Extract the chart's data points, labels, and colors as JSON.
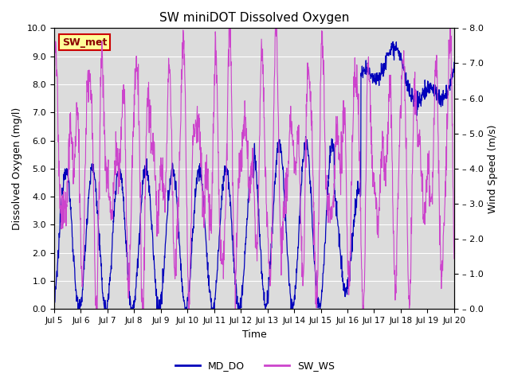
{
  "title": "SW miniDOT Dissolved Oxygen",
  "xlabel": "Time",
  "ylabel_left": "Dissolved Oxygen (mg/l)",
  "ylabel_right": "Wind Speed (m/s)",
  "ylim_left": [
    0.0,
    10.0
  ],
  "ylim_right": [
    0.0,
    8.0
  ],
  "yticks_left": [
    0.0,
    1.0,
    2.0,
    3.0,
    4.0,
    5.0,
    6.0,
    7.0,
    8.0,
    9.0,
    10.0
  ],
  "yticks_right": [
    0.0,
    1.0,
    2.0,
    3.0,
    4.0,
    5.0,
    6.0,
    7.0,
    8.0
  ],
  "ytick_right_labels": [
    "– 0.0",
    "– 1.0",
    "– 2.0",
    "– 3.0",
    "– 4.0",
    "– 5.0",
    "– 6.0",
    "– 7.0",
    "– 8.0"
  ],
  "xtick_labels": [
    "Jul 5",
    "Jul 6",
    "Jul 7",
    "Jul 8",
    "Jul 9",
    "Jul 10",
    "Jul 11",
    "Jul 12",
    "Jul 13",
    "Jul 14",
    "Jul 15",
    "Jul 16",
    "Jul 17",
    "Jul 18",
    "Jul 19",
    "Jul 20"
  ],
  "color_do": "#0000bb",
  "color_ws": "#cc44cc",
  "legend_label_do": "MD_DO",
  "legend_label_ws": "SW_WS",
  "annotation_text": "SW_met",
  "annotation_color": "#8b0000",
  "annotation_bg": "#ffff99",
  "annotation_border": "#cc0000",
  "plot_bg": "#dcdcdc",
  "fig_bg": "#ffffff",
  "grid_color": "#ffffff",
  "figsize": [
    6.4,
    4.8
  ],
  "dpi": 100
}
